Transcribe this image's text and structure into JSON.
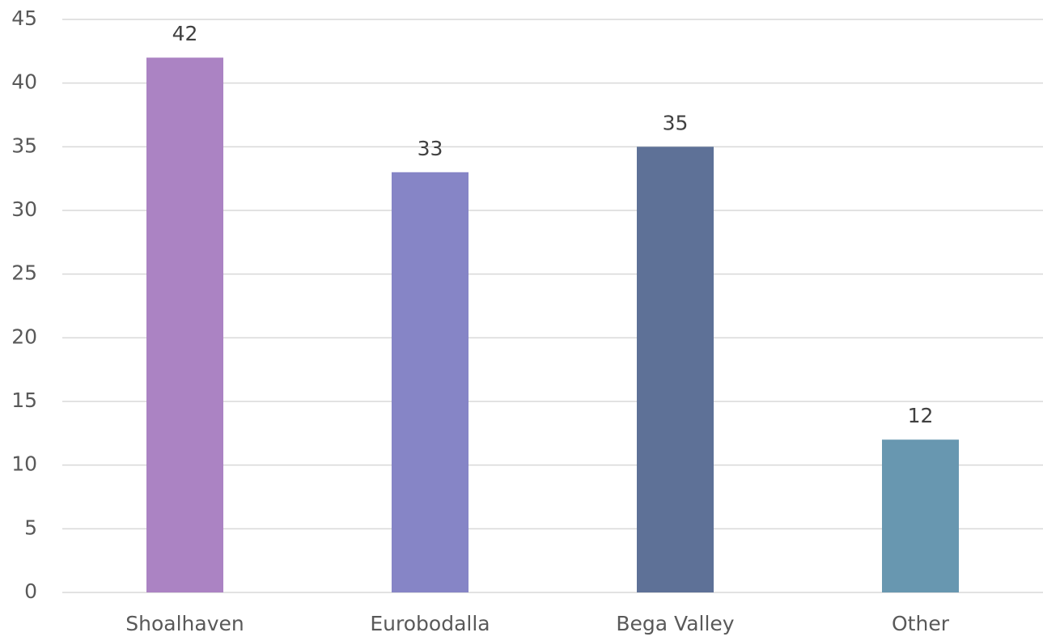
{
  "chart_data": {
    "type": "bar",
    "categories": [
      "Shoalhaven",
      "Eurobodalla",
      "Bega Valley",
      "Other"
    ],
    "values": [
      42,
      33,
      35,
      12
    ],
    "colors": [
      "#ab83c3",
      "#8685c6",
      "#5e7197",
      "#6897b0"
    ],
    "ylim": [
      0,
      45
    ],
    "yticks": [
      0,
      5,
      10,
      15,
      20,
      25,
      30,
      35,
      40,
      45
    ],
    "grid": true
  }
}
